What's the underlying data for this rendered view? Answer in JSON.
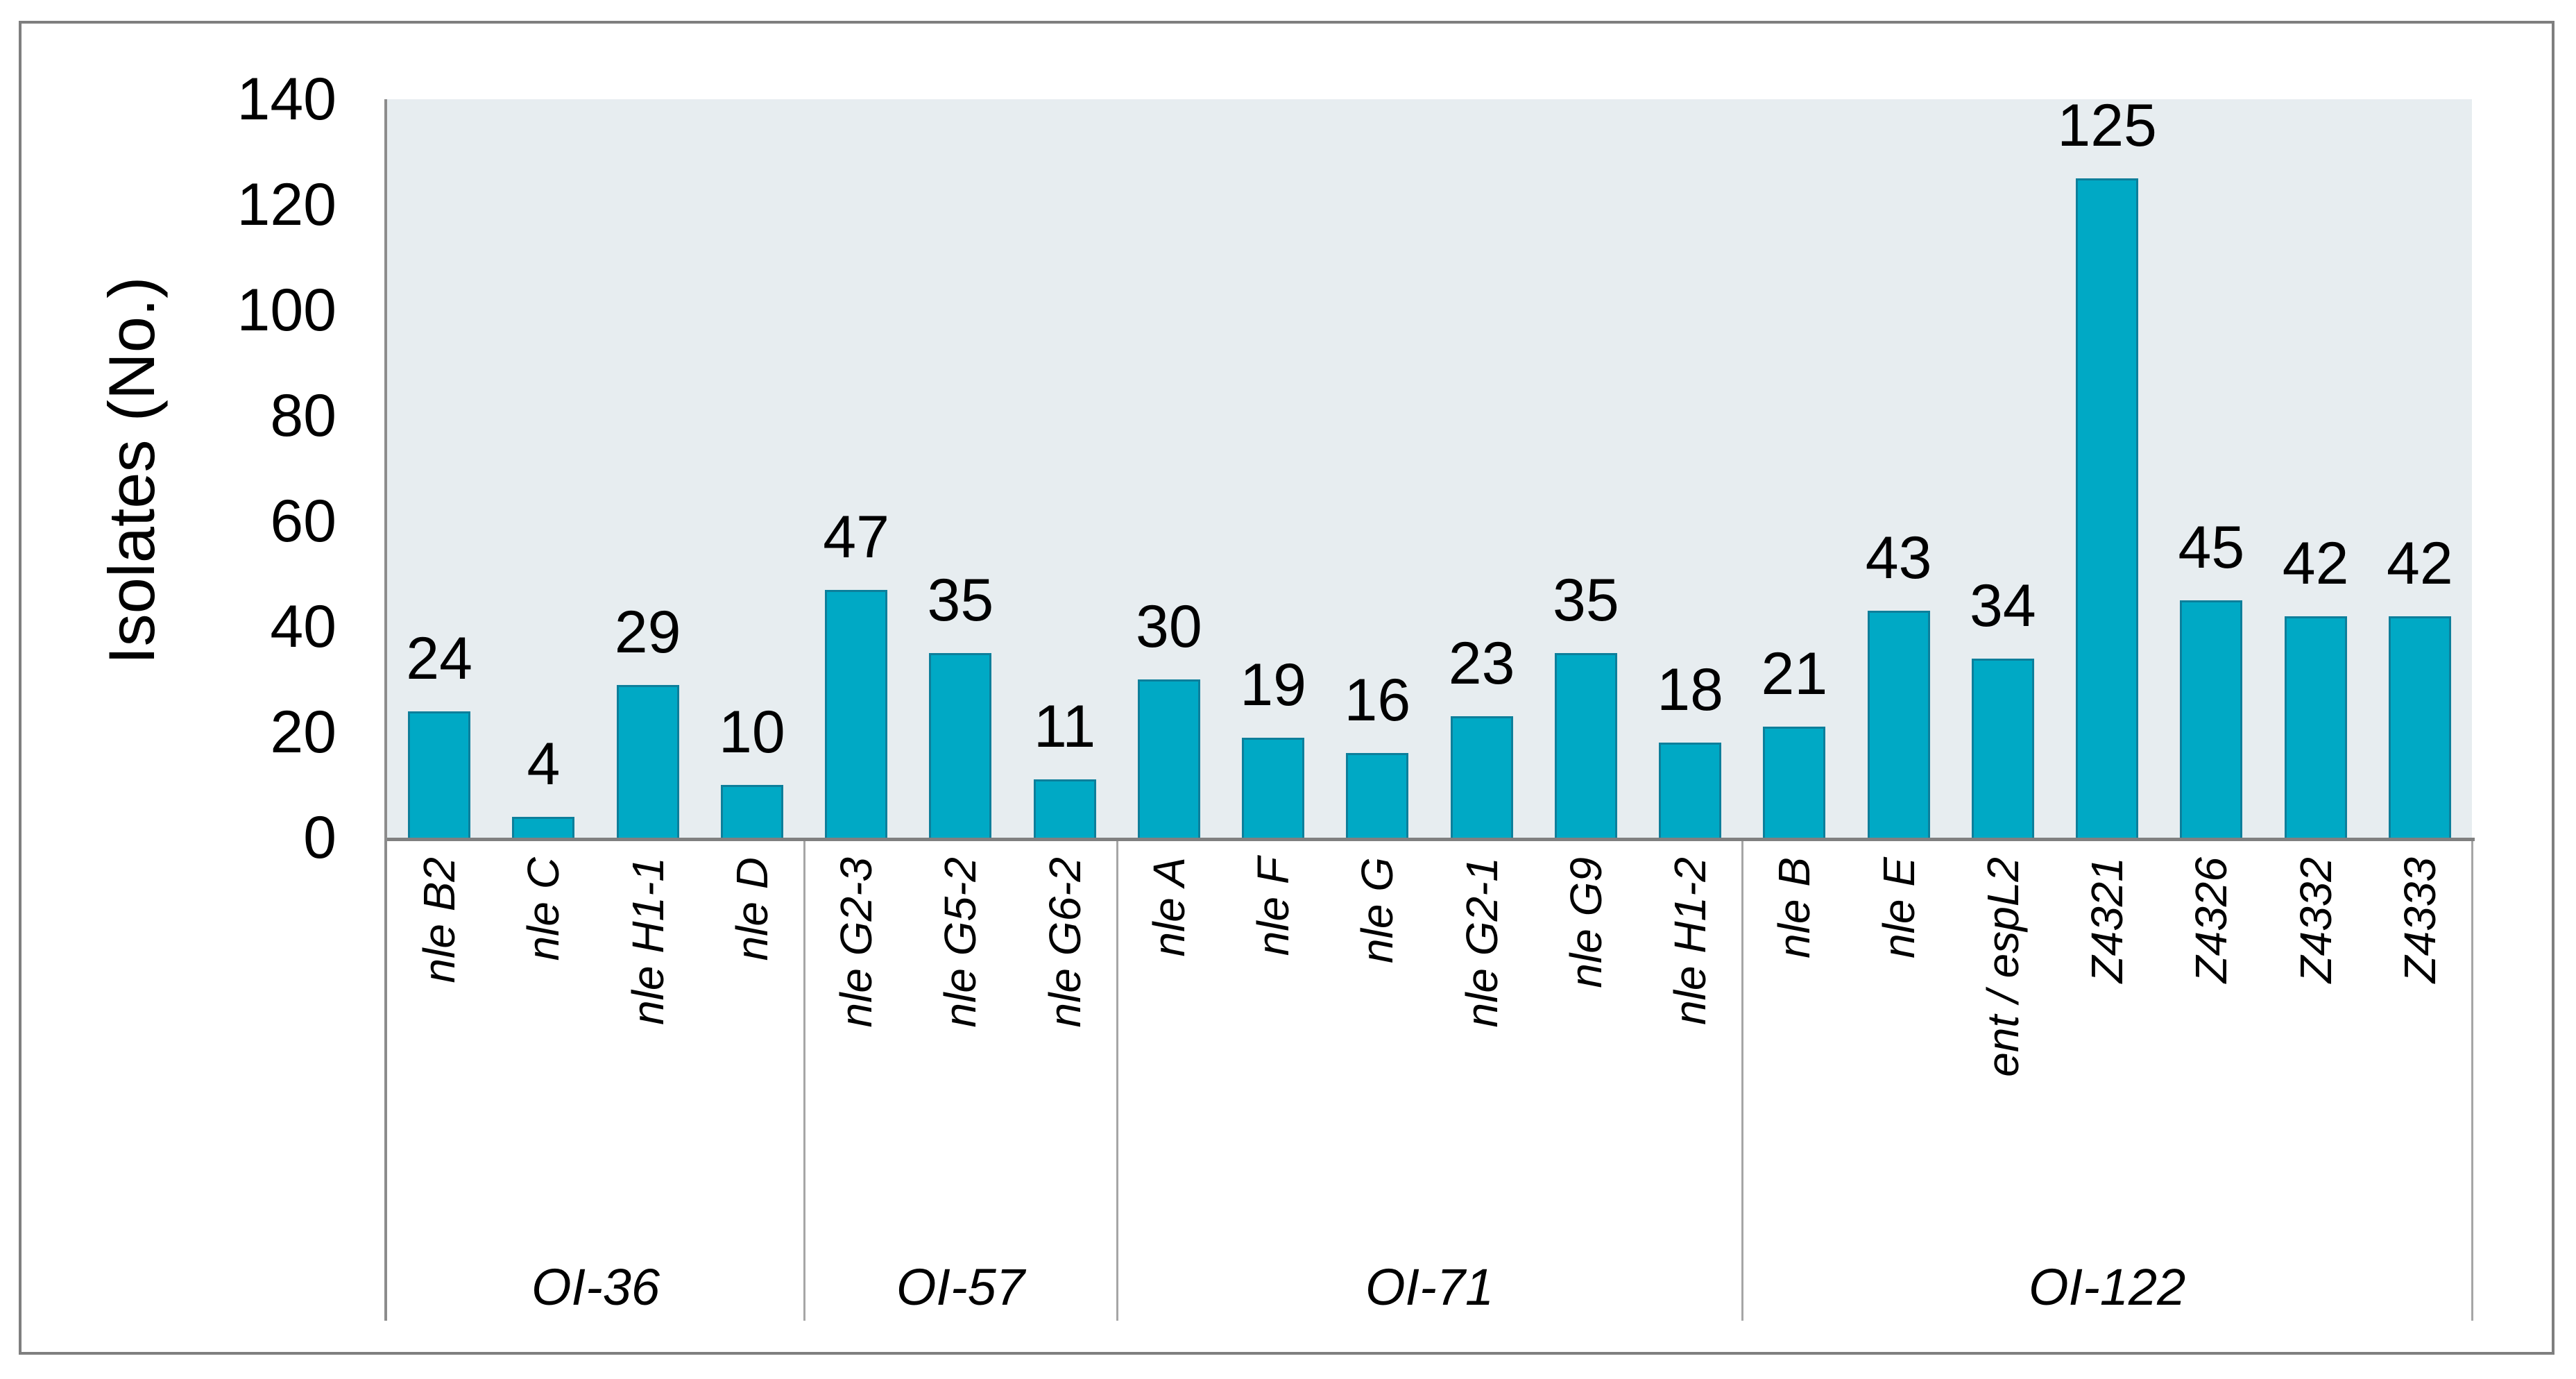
{
  "chart_data": {
    "type": "bar",
    "title": "",
    "ylabel": "Isolates (No.)",
    "xlabel": "",
    "ylim": [
      0,
      140
    ],
    "yticks": [
      0,
      20,
      40,
      60,
      80,
      100,
      120,
      140
    ],
    "grid": "off",
    "legend": "none",
    "bar_color": "#00a9c5",
    "bar_border_color": "#0d7f9b",
    "plot_bg_color": "#e7edf0",
    "axis_line_color": "#808080",
    "divider_line_color": "#a6a6a6",
    "frame_color": "#7f7f7f",
    "groups": [
      {
        "name": "OI-36",
        "categories": [
          "nle B2",
          "nle C",
          "nle H1-1",
          "nle D"
        ],
        "values": [
          24,
          4,
          29,
          10
        ]
      },
      {
        "name": "OI-57",
        "categories": [
          "nle G2-3",
          "nle G5-2",
          "nle G6-2"
        ],
        "values": [
          47,
          35,
          11
        ]
      },
      {
        "name": "OI-71",
        "categories": [
          "nle A",
          "nle F",
          "nle G",
          "nle G2-1",
          "nle G9",
          "nle H1-2"
        ],
        "values": [
          30,
          19,
          16,
          23,
          35,
          18
        ]
      },
      {
        "name": "OI-122",
        "categories": [
          "nle B",
          "nle E",
          "ent / espL2",
          "Z4321",
          "Z4326",
          "Z4332",
          "Z4333"
        ],
        "values": [
          21,
          43,
          34,
          125,
          45,
          42,
          42
        ]
      }
    ]
  }
}
